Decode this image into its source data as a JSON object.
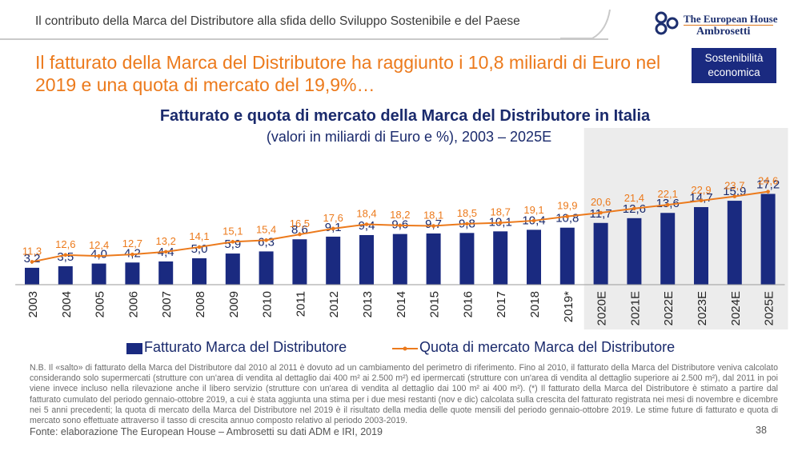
{
  "header": {
    "title": "Il contributo della Marca del Distributore alla sfida dello Sviluppo Sostenibile e del Paese",
    "logo": {
      "line1": "The European House",
      "line2": "Ambrosetti",
      "icon": "teha-logo-icon"
    },
    "badge": "Sostenibilità economica"
  },
  "headline": "Il fatturato della Marca del Distributore ha raggiunto i 10,8 miliardi di Euro nel 2019 e una quota di mercato del 19,9%…",
  "colors": {
    "bar": "#1a2a80",
    "line": "#ec7a1c",
    "forecast_shade": "#ececec",
    "headline": "#ec7a1c",
    "title": "#1a2a6c",
    "badge": "#1a2a80"
  },
  "chart_data": {
    "type": "bar",
    "title": "Fatturato e quota di mercato della Marca del Distributore in Italia",
    "subtitle": "(valori in miliardi di Euro e %), 2003 – 2025E",
    "categories": [
      "2003",
      "2004",
      "2005",
      "2006",
      "2007",
      "2008",
      "2009",
      "2010",
      "2011",
      "2012",
      "2013",
      "2014",
      "2015",
      "2016",
      "2017",
      "2018",
      "2019*",
      "2020E",
      "2021E",
      "2022E",
      "2023E",
      "2024E",
      "2025E"
    ],
    "series": [
      {
        "name": "Fatturato Marca del Distributore",
        "kind": "bar",
        "values": [
          3.2,
          3.5,
          4.0,
          4.2,
          4.4,
          5.0,
          5.9,
          6.3,
          8.6,
          9.1,
          9.4,
          9.6,
          9.7,
          9.8,
          10.1,
          10.4,
          10.8,
          11.7,
          12.6,
          13.6,
          14.7,
          15.9,
          17.2
        ],
        "labels": [
          "3,2",
          "3,5",
          "4,0",
          "4,2",
          "4,4",
          "5,0",
          "5,9",
          "6,3",
          "8,6",
          "9,1",
          "9,4",
          "9,6",
          "9,7",
          "9,8",
          "10,1",
          "10,4",
          "10,8",
          "11,7",
          "12,6",
          "13,6",
          "14,7",
          "15,9",
          "17,2"
        ]
      },
      {
        "name": "Quota di mercato Marca del Distributore",
        "kind": "line",
        "values": [
          11.3,
          12.6,
          12.4,
          12.7,
          13.2,
          14.1,
          15.1,
          15.4,
          16.5,
          17.6,
          18.4,
          18.2,
          18.1,
          18.5,
          18.7,
          19.1,
          19.9,
          20.6,
          21.4,
          22.1,
          22.9,
          23.7,
          24.6
        ],
        "labels": [
          "11,3",
          "12,6",
          "12,4",
          "12,7",
          "13,2",
          "14,1",
          "15,1",
          "15,4",
          "16,5",
          "17,6",
          "18,4",
          "18,2",
          "18,1",
          "18,5",
          "18,7",
          "19,1",
          "19,9",
          "20,6",
          "21,4",
          "22,1",
          "22,9",
          "23,7",
          "24,6"
        ]
      }
    ],
    "forecast_categories": [
      "2020E",
      "2021E",
      "2022E",
      "2023E",
      "2024E",
      "2025E"
    ],
    "xlabel": "",
    "ylabel": "",
    "grid": false,
    "legend_position": "bottom"
  },
  "note": "N.B. Il «salto» di fatturato della Marca del Distributore dal 2010 al 2011 è dovuto ad un cambiamento del perimetro di riferimento. Fino al 2010, il fatturato della Marca del Distributore veniva calcolato considerando solo supermercati (strutture con un'area di vendita al dettaglio dai 400 m² ai 2.500 m²) ed ipermercati (strutture con un'area di vendita al dettaglio superiore ai 2.500 m²), dal 2011 in poi viene invece incluso nella rilevazione anche il libero servizio (strutture con un'area di vendita al dettaglio dai 100 m² ai 400 m²). (*) Il fatturato della Marca del Distributore è stimato a partire dal fatturato cumulato del periodo gennaio-ottobre 2019, a cui è stata aggiunta una stima per i due mesi restanti (nov e dic) calcolata sulla crescita del fatturato registrata nei mesi di novembre e dicembre nei 5 anni precedenti; la quota di mercato della Marca del Distributore nel 2019 è il risultato della media delle quote mensili del periodo gennaio-ottobre 2019. Le stime future di fatturato e quota di mercato sono effettuate attraverso il tasso di crescita annuo composto relativo al periodo 2003-2019.",
  "source": "Fonte: elaborazione The European House – Ambrosetti su dati ADM e IRI, 2019",
  "page_number": "38"
}
